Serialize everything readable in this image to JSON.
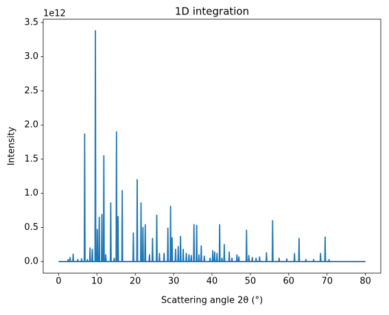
{
  "chart_data": {
    "type": "line",
    "title": "1D integration",
    "x_label": "Scattering angle 2θ (°)",
    "y_label": "Intensity",
    "y_offset_text": "1e12",
    "color": "#1f77b4",
    "x": [
      0,
      2.4,
      2.5,
      2.6,
      2.9,
      3.0,
      3.1,
      3.7,
      3.8,
      3.9,
      4.9,
      5.0,
      5.1,
      5.9,
      6.0,
      6.1,
      6.7,
      6.8,
      6.9,
      7.4,
      7.5,
      7.6,
      8.1,
      8.2,
      8.3,
      8.7,
      8.8,
      8.9,
      9.5,
      9.6,
      9.7,
      10.0,
      10.1,
      10.2,
      10.5,
      10.6,
      10.7,
      11.2,
      11.3,
      11.4,
      11.7,
      11.8,
      11.9,
      12.2,
      12.3,
      12.4,
      13.5,
      13.6,
      13.7,
      14.4,
      14.5,
      14.6,
      15.0,
      15.1,
      15.2,
      15.4,
      15.5,
      15.6,
      16.5,
      16.6,
      16.7,
      19.4,
      19.5,
      19.6,
      20.4,
      20.5,
      20.6,
      21.4,
      21.5,
      21.6,
      21.9,
      22.0,
      22.1,
      22.5,
      22.6,
      22.7,
      23.6,
      23.7,
      23.8,
      24.4,
      24.5,
      24.6,
      25.5,
      25.6,
      25.7,
      26.2,
      26.3,
      26.4,
      27.4,
      27.5,
      27.6,
      28.4,
      28.5,
      28.6,
      29.1,
      29.2,
      29.3,
      29.5,
      29.6,
      29.7,
      30.4,
      30.5,
      30.6,
      31.1,
      31.2,
      31.3,
      31.7,
      31.8,
      31.9,
      32.4,
      32.5,
      32.6,
      33.2,
      33.3,
      33.4,
      33.9,
      34.0,
      34.1,
      34.5,
      34.6,
      34.7,
      35.2,
      35.3,
      35.4,
      35.9,
      36.0,
      36.1,
      36.5,
      36.6,
      36.7,
      37.1,
      37.2,
      37.3,
      37.9,
      38.0,
      38.1,
      39.4,
      39.5,
      39.6,
      40.1,
      40.2,
      40.3,
      40.6,
      40.7,
      40.8,
      41.2,
      41.3,
      41.4,
      41.9,
      42.0,
      42.1,
      42.5,
      42.6,
      42.7,
      43.1,
      43.2,
      43.3,
      44.4,
      44.5,
      44.6,
      45.1,
      45.2,
      45.3,
      46.4,
      46.5,
      46.6,
      46.9,
      47.0,
      47.1,
      48.9,
      49.0,
      49.1,
      49.5,
      49.6,
      49.7,
      50.4,
      50.5,
      50.6,
      51.4,
      51.5,
      51.6,
      52.3,
      52.4,
      52.5,
      54.1,
      54.2,
      54.3,
      55.7,
      55.8,
      55.9,
      57.4,
      57.5,
      57.6,
      59.4,
      59.5,
      59.6,
      61.4,
      61.5,
      61.6,
      62.6,
      62.7,
      62.8,
      64.4,
      64.5,
      64.6,
      66.4,
      66.5,
      66.6,
      68.2,
      68.3,
      68.4,
      69.4,
      69.5,
      69.6,
      70.4,
      70.5,
      70.6,
      80
    ],
    "values": [
      0,
      0,
      0.03,
      0,
      0,
      0.06,
      0,
      0,
      0.11,
      0,
      0,
      0.03,
      0,
      0,
      0.04,
      0,
      0,
      1.87,
      0,
      0,
      0.03,
      0,
      0,
      0.2,
      0,
      0,
      0.18,
      0,
      0,
      3.38,
      0,
      0,
      0.47,
      0,
      0,
      0.65,
      0,
      0,
      0.69,
      0,
      0,
      1.55,
      0,
      0,
      0.1,
      0,
      0,
      0.86,
      0,
      0,
      0.05,
      0,
      0,
      1.9,
      0,
      0,
      0.66,
      0,
      0,
      1.04,
      0,
      0,
      0.42,
      0,
      0,
      1.2,
      0,
      0,
      0.86,
      0,
      0,
      0.5,
      0,
      0,
      0.54,
      0,
      0,
      0.1,
      0,
      0,
      0.34,
      0,
      0,
      0.68,
      0,
      0,
      0.12,
      0,
      0,
      0.12,
      0,
      0,
      0.49,
      0,
      0,
      0.81,
      0,
      0,
      0.35,
      0,
      0,
      0.18,
      0,
      0,
      0.22,
      0,
      0,
      0.37,
      0,
      0,
      0.18,
      0,
      0,
      0.12,
      0,
      0,
      0.1,
      0,
      0,
      0.09,
      0,
      0,
      0.54,
      0,
      0,
      0.53,
      0,
      0,
      0.1,
      0,
      0,
      0.23,
      0,
      0,
      0.08,
      0,
      0,
      0.05,
      0,
      0,
      0.16,
      0,
      0,
      0.14,
      0,
      0,
      0.12,
      0,
      0,
      0.54,
      0,
      0,
      0.05,
      0,
      0,
      0.25,
      0,
      0,
      0.14,
      0,
      0,
      0.05,
      0,
      0,
      0.1,
      0,
      0,
      0.07,
      0,
      0,
      0.46,
      0,
      0,
      0.09,
      0,
      0,
      0.06,
      0,
      0,
      0.05,
      0,
      0,
      0.07,
      0,
      0,
      0.13,
      0,
      0,
      0.6,
      0,
      0,
      0.05,
      0,
      0,
      0.04,
      0,
      0,
      0.12,
      0,
      0,
      0.34,
      0,
      0,
      0.03,
      0,
      0,
      0.03,
      0,
      0,
      0.12,
      0,
      0,
      0.36,
      0,
      0,
      0.03,
      0,
      0
    ],
    "xlim": [
      -4,
      84
    ],
    "xticks": [
      0,
      10,
      20,
      30,
      40,
      50,
      60,
      70,
      80
    ],
    "ylim": [
      -0.169,
      3.549
    ],
    "yticks": [
      {
        "value": 0,
        "label": "0.0"
      },
      0.5,
      {
        "value": 1,
        "label": "1.0"
      },
      1.5,
      {
        "value": 2,
        "label": "2.0"
      },
      2.5,
      {
        "value": 3,
        "label": "3.0"
      },
      3.5
    ]
  }
}
